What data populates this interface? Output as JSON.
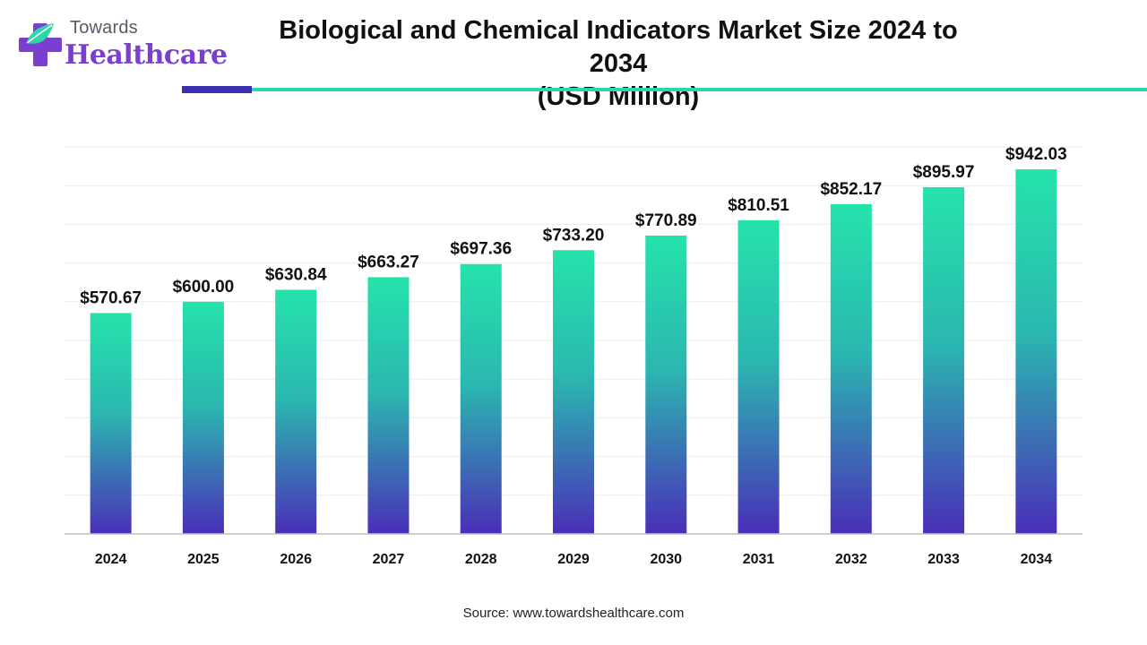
{
  "brand": {
    "top": "Towards",
    "main": "Healthcare",
    "colors": {
      "purple": "#7b3fd0",
      "teal": "#2fd6a8",
      "navy": "#3c2fb3"
    }
  },
  "header": {
    "title_line1": "Biological and Chemical Indicators Market Size 2024 to 2034",
    "title_line2": "(USD Million)"
  },
  "footer": {
    "source": "Source: www.towardshealthcare.com"
  },
  "chart_data": {
    "type": "bar",
    "categories": [
      "2024",
      "2025",
      "2026",
      "2027",
      "2028",
      "2029",
      "2030",
      "2031",
      "2032",
      "2033",
      "2034"
    ],
    "values": [
      570.67,
      600.0,
      630.84,
      663.27,
      697.36,
      733.2,
      770.89,
      810.51,
      852.17,
      895.97,
      942.03
    ],
    "value_labels": [
      "$570.67",
      "$600.00",
      "$630.84",
      "$663.27",
      "$697.36",
      "$733.20",
      "$770.89",
      "$810.51",
      "$852.17",
      "$895.97",
      "$942.03"
    ],
    "title": "Biological and Chemical Indicators Market Size 2024 to 2034 (USD Million)",
    "xlabel": "",
    "ylabel": "",
    "ylim": [
      0,
      1000
    ],
    "grid": true,
    "legend": "none",
    "bar_gradient": {
      "top": "#25e3ab",
      "bottom": "#4a2eb8"
    }
  }
}
